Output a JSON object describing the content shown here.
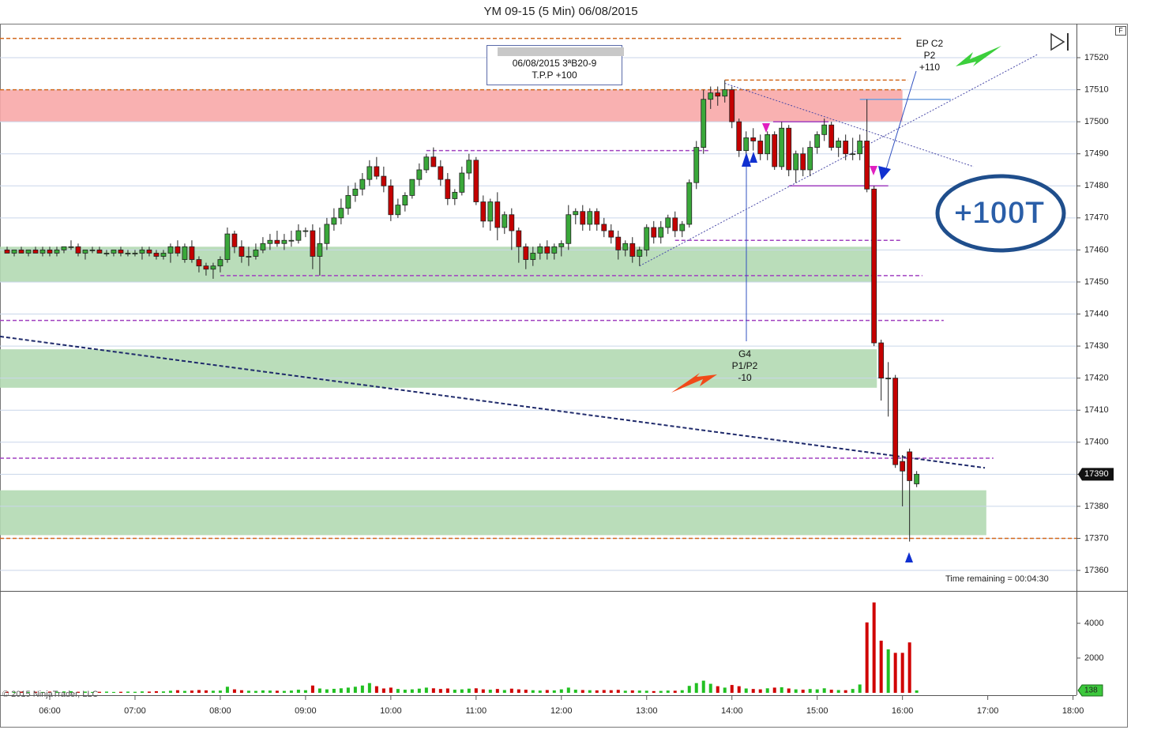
{
  "chart_data": {
    "type": "candlestick",
    "title": "YM 09-15 (5 Min)  06/08/2015",
    "x": [
      "05:30",
      "05:35",
      "05:40",
      "05:45",
      "05:50",
      "05:55",
      "06:00",
      "06:05",
      "06:10",
      "06:15",
      "06:20",
      "06:25",
      "06:30",
      "06:35",
      "06:40",
      "06:45",
      "06:50",
      "06:55",
      "07:00",
      "07:05",
      "07:10",
      "07:15",
      "07:20",
      "07:25",
      "07:30",
      "07:35",
      "07:40",
      "07:45",
      "07:50",
      "07:55",
      "08:00",
      "08:05",
      "08:10",
      "08:15",
      "08:20",
      "08:25",
      "08:30",
      "08:35",
      "08:40",
      "08:45",
      "08:50",
      "08:55",
      "09:00",
      "09:05",
      "09:10",
      "09:15",
      "09:20",
      "09:25",
      "09:30",
      "09:35",
      "09:40",
      "09:45",
      "09:50",
      "09:55",
      "10:00",
      "10:05",
      "10:10",
      "10:15",
      "10:20",
      "10:25",
      "10:30",
      "10:35",
      "10:40",
      "10:45",
      "10:50",
      "10:55",
      "11:00",
      "11:05",
      "11:10",
      "11:15",
      "11:20",
      "11:25",
      "11:30",
      "11:35",
      "11:40",
      "11:45",
      "11:50",
      "11:55",
      "12:00",
      "12:05",
      "12:10",
      "12:15",
      "12:20",
      "12:25",
      "12:30",
      "12:35",
      "12:40",
      "12:45",
      "12:50",
      "12:55",
      "13:00",
      "13:05",
      "13:10",
      "13:15",
      "13:20",
      "13:25",
      "13:30",
      "13:35",
      "13:40",
      "13:45",
      "13:50",
      "13:55",
      "14:00",
      "14:05",
      "14:10",
      "14:15",
      "14:20",
      "14:25",
      "14:30",
      "14:35",
      "14:40",
      "14:45",
      "14:50",
      "14:55",
      "15:00",
      "15:05",
      "15:10",
      "15:15",
      "15:20",
      "15:25",
      "15:30",
      "15:35",
      "15:40",
      "15:45",
      "15:50",
      "15:55",
      "16:00",
      "16:05",
      "16:10"
    ],
    "open": [
      17460,
      17459,
      17460,
      17459,
      17460,
      17459,
      17460,
      17459,
      17460,
      17461,
      17461,
      17459,
      17460,
      17460,
      17459,
      17459,
      17460,
      17459,
      17459,
      17459,
      17460,
      17459,
      17458,
      17459,
      17461,
      17457,
      17461,
      17457,
      17455,
      17454,
      17455,
      17457,
      17465,
      17461,
      17458,
      17458,
      17460,
      17462,
      17463,
      17462,
      17463,
      17463,
      17466,
      17466,
      17458,
      17462,
      17468,
      17470,
      17473,
      17477,
      17479,
      17482,
      17486,
      17483,
      17480,
      17471,
      17474,
      17477,
      17482,
      17485,
      17489,
      17486,
      17482,
      17476,
      17478,
      17484,
      17488,
      17475,
      17469,
      17475,
      17467,
      17471,
      17466,
      17461,
      17457,
      17459,
      17461,
      17459,
      17461,
      17462,
      17471,
      17472,
      17468,
      17472,
      17468,
      17466,
      17464,
      17460,
      17462,
      17458,
      17460,
      17467,
      17464,
      17467,
      17470,
      17466,
      17468,
      17481,
      17492,
      17507,
      17509,
      17508,
      17510,
      17500,
      17491,
      17495,
      17494,
      17490,
      17496,
      17486,
      17498,
      17485,
      17490,
      17485,
      17492,
      17496,
      17499,
      17492,
      17494,
      17490,
      17490,
      17494,
      17479,
      17431,
      17420,
      17420,
      17394,
      17397,
      17387
    ],
    "high": [
      17461,
      17460,
      17461,
      17460,
      17461,
      17461,
      17461,
      17461,
      17461,
      17463,
      17462,
      17460,
      17461,
      17461,
      17460,
      17460,
      17461,
      17460,
      17460,
      17461,
      17461,
      17460,
      17460,
      17462,
      17463,
      17462,
      17463,
      17458,
      17456,
      17456,
      17458,
      17467,
      17466,
      17463,
      17461,
      17462,
      17464,
      17465,
      17466,
      17465,
      17466,
      17468,
      17467,
      17468,
      17467,
      17470,
      17473,
      17476,
      17480,
      17481,
      17484,
      17488,
      17489,
      17486,
      17482,
      17476,
      17478,
      17482,
      17487,
      17490,
      17492,
      17488,
      17484,
      17479,
      17486,
      17490,
      17489,
      17477,
      17476,
      17478,
      17472,
      17473,
      17467,
      17462,
      17461,
      17462,
      17463,
      17462,
      17463,
      17474,
      17473,
      17474,
      17473,
      17473,
      17470,
      17468,
      17466,
      17463,
      17464,
      17461,
      17468,
      17469,
      17469,
      17471,
      17472,
      17469,
      17482,
      17494,
      17510,
      17511,
      17511,
      17513,
      17511,
      17501,
      17497,
      17498,
      17496,
      17497,
      17497,
      17500,
      17499,
      17491,
      17492,
      17494,
      17497,
      17501,
      17500,
      17495,
      17496,
      17495,
      17496,
      17507,
      17480,
      17432,
      17425,
      17421,
      17396,
      17398,
      17391
    ],
    "low": [
      17459,
      17458,
      17459,
      17458,
      17459,
      17458,
      17458,
      17458,
      17459,
      17460,
      17458,
      17457,
      17459,
      17459,
      17458,
      17458,
      17458,
      17458,
      17458,
      17457,
      17458,
      17457,
      17457,
      17456,
      17458,
      17456,
      17456,
      17453,
      17452,
      17451,
      17453,
      17456,
      17459,
      17456,
      17455,
      17457,
      17459,
      17460,
      17461,
      17460,
      17461,
      17462,
      17464,
      17454,
      17452,
      17460,
      17466,
      17468,
      17471,
      17475,
      17477,
      17480,
      17482,
      17478,
      17469,
      17470,
      17472,
      17476,
      17480,
      17484,
      17486,
      17480,
      17474,
      17474,
      17477,
      17482,
      17474,
      17467,
      17466,
      17463,
      17465,
      17460,
      17456,
      17454,
      17455,
      17457,
      17457,
      17457,
      17458,
      17460,
      17468,
      17466,
      17466,
      17466,
      17464,
      17462,
      17457,
      17458,
      17456,
      17455,
      17458,
      17462,
      17462,
      17465,
      17464,
      17464,
      17467,
      17479,
      17490,
      17504,
      17505,
      17506,
      17498,
      17489,
      17489,
      17491,
      17488,
      17488,
      17485,
      17485,
      17483,
      17481,
      17483,
      17483,
      17490,
      17494,
      17491,
      17489,
      17488,
      17488,
      17488,
      17478,
      17430,
      17413,
      17408,
      17392,
      17380,
      17369,
      17386
    ],
    "close": [
      17459,
      17460,
      17459,
      17460,
      17459,
      17460,
      17459,
      17460,
      17461,
      17461,
      17459,
      17460,
      17460,
      17459,
      17459,
      17460,
      17459,
      17459,
      17459,
      17460,
      17459,
      17458,
      17459,
      17461,
      17459,
      17461,
      17457,
      17455,
      17454,
      17455,
      17457,
      17465,
      17461,
      17458,
      17458,
      17460,
      17462,
      17463,
      17462,
      17463,
      17463,
      17466,
      17466,
      17458,
      17462,
      17468,
      17470,
      17473,
      17477,
      17479,
      17482,
      17486,
      17483,
      17480,
      17471,
      17474,
      17477,
      17482,
      17485,
      17489,
      17486,
      17482,
      17476,
      17478,
      17484,
      17488,
      17475,
      17469,
      17475,
      17467,
      17471,
      17466,
      17461,
      17457,
      17459,
      17461,
      17459,
      17461,
      17462,
      17471,
      17472,
      17468,
      17472,
      17468,
      17466,
      17464,
      17460,
      17462,
      17458,
      17460,
      17467,
      17464,
      17467,
      17470,
      17466,
      17468,
      17481,
      17492,
      17507,
      17509,
      17508,
      17510,
      17500,
      17491,
      17495,
      17494,
      17490,
      17496,
      17486,
      17498,
      17485,
      17490,
      17485,
      17492,
      17496,
      17499,
      17492,
      17494,
      17490,
      17490,
      17494,
      17479,
      17431,
      17420,
      17420,
      17393,
      17391,
      17388,
      17390
    ],
    "up_color": "#3aa83a",
    "down_color": "#c40000",
    "xlim": [
      "05:25",
      "18:03"
    ],
    "xticks": [
      "06:00",
      "07:00",
      "08:00",
      "09:00",
      "10:00",
      "11:00",
      "12:00",
      "13:00",
      "14:00",
      "15:00",
      "16:00",
      "17:00",
      "18:00"
    ],
    "ylim": [
      17353.6,
      17530.6
    ],
    "yticks": [
      17360,
      17370,
      17380,
      17390,
      17400,
      17410,
      17420,
      17430,
      17440,
      17450,
      17460,
      17470,
      17480,
      17490,
      17500,
      17510,
      17520
    ],
    "grid": true,
    "zones": [
      {
        "low": 17500,
        "high": 17510,
        "start": "05:25",
        "end": "16:00",
        "color": "#f8a9a9"
      },
      {
        "low": 17450,
        "high": 17461,
        "start": "05:25",
        "end": "15:39",
        "color": "#b3d9b3"
      },
      {
        "low": 17417,
        "high": 17429,
        "start": "05:25",
        "end": "15:42",
        "color": "#b3d9b3"
      },
      {
        "low": 17371,
        "high": 17385,
        "start": "05:25",
        "end": "16:59",
        "color": "#b3d9b3"
      }
    ],
    "levels": [
      {
        "price": 17526,
        "start": "05:25",
        "end": "16:00",
        "color": "#d2691e",
        "style": "dashed"
      },
      {
        "price": 17510,
        "start": "05:25",
        "end": "16:00",
        "color": "#d2691e",
        "style": "dashed"
      },
      {
        "price": 17513,
        "start": "13:55",
        "end": "16:04",
        "color": "#d2691e",
        "style": "dashed"
      },
      {
        "price": 17370,
        "start": "05:25",
        "end": "18:03",
        "color": "#d2691e",
        "style": "dashed"
      },
      {
        "price": 17491,
        "start": "10:25",
        "end": "13:45",
        "color": "#a040c0",
        "style": "dashed"
      },
      {
        "price": 17463,
        "start": "13:20",
        "end": "16:00",
        "color": "#a040c0",
        "style": "dashed"
      },
      {
        "price": 17452,
        "start": "08:00",
        "end": "16:14",
        "color": "#a040c0",
        "style": "dashed"
      },
      {
        "price": 17438,
        "start": "05:25",
        "end": "16:29",
        "color": "#a040c0",
        "style": "dashed"
      },
      {
        "price": 17395,
        "start": "05:25",
        "end": "17:04",
        "color": "#a040c0",
        "style": "dashed"
      },
      {
        "price": 17500,
        "start": "14:29",
        "end": "15:08",
        "color": "#a040c0",
        "style": "solid"
      },
      {
        "price": 17480,
        "start": "14:40",
        "end": "15:50",
        "color": "#a040c0",
        "style": "solid"
      },
      {
        "price": 17507,
        "start": "15:30",
        "end": "16:34",
        "color": "#6fa0e0",
        "style": "solid"
      }
    ],
    "trendlines": [
      {
        "start": "05:25",
        "end": "16:58",
        "from": 17433,
        "to": 17392,
        "color": "#1f2a6b",
        "style": "dashed"
      },
      {
        "start": "12:55",
        "end": "17:35",
        "from": 17455,
        "to": 17521,
        "color": "#4a4aa8",
        "style": "dotted"
      },
      {
        "start": "13:55",
        "end": "16:50",
        "from": 17512,
        "to": 17486,
        "color": "#4a4aa8",
        "style": "dotted"
      }
    ],
    "volume": {
      "values": [
        60,
        50,
        70,
        40,
        60,
        50,
        70,
        60,
        80,
        90,
        60,
        70,
        50,
        60,
        70,
        50,
        60,
        70,
        60,
        80,
        70,
        90,
        80,
        120,
        150,
        110,
        130,
        160,
        140,
        120,
        130,
        350,
        200,
        150,
        120,
        110,
        140,
        130,
        120,
        110,
        130,
        180,
        150,
        420,
        250,
        200,
        230,
        260,
        300,
        350,
        420,
        560,
        380,
        250,
        300,
        220,
        180,
        200,
        240,
        300,
        260,
        220,
        250,
        180,
        200,
        240,
        260,
        200,
        180,
        220,
        160,
        240,
        200,
        180,
        150,
        130,
        160,
        140,
        200,
        300,
        180,
        160,
        150,
        140,
        160,
        150,
        170,
        120,
        140,
        130,
        120,
        100,
        110,
        130,
        120,
        150,
        400,
        560,
        700,
        520,
        380,
        300,
        450,
        380,
        250,
        220,
        200,
        260,
        300,
        320,
        250,
        200,
        180,
        220,
        200,
        260,
        180,
        160,
        150,
        220,
        480,
        4050,
        5200,
        3000,
        2500,
        2300,
        2300,
        2900,
        138
      ],
      "ylim": [
        -136,
        5773
      ],
      "yticks": [
        2000,
        4000
      ]
    },
    "annotations": {
      "box_line1": "06/08/2015  3ªB20-9",
      "box_line2": "T.P.P  +100",
      "entry": [
        "EP C2",
        "P2",
        "+110"
      ],
      "stop": [
        "G4",
        "P1/P2",
        "-10"
      ],
      "badge": "+100T",
      "time_remaining": "Time remaining = 00:04:30",
      "copyright": "© 2015 NinjaTrader, LLC",
      "panel_flag": "F"
    }
  }
}
